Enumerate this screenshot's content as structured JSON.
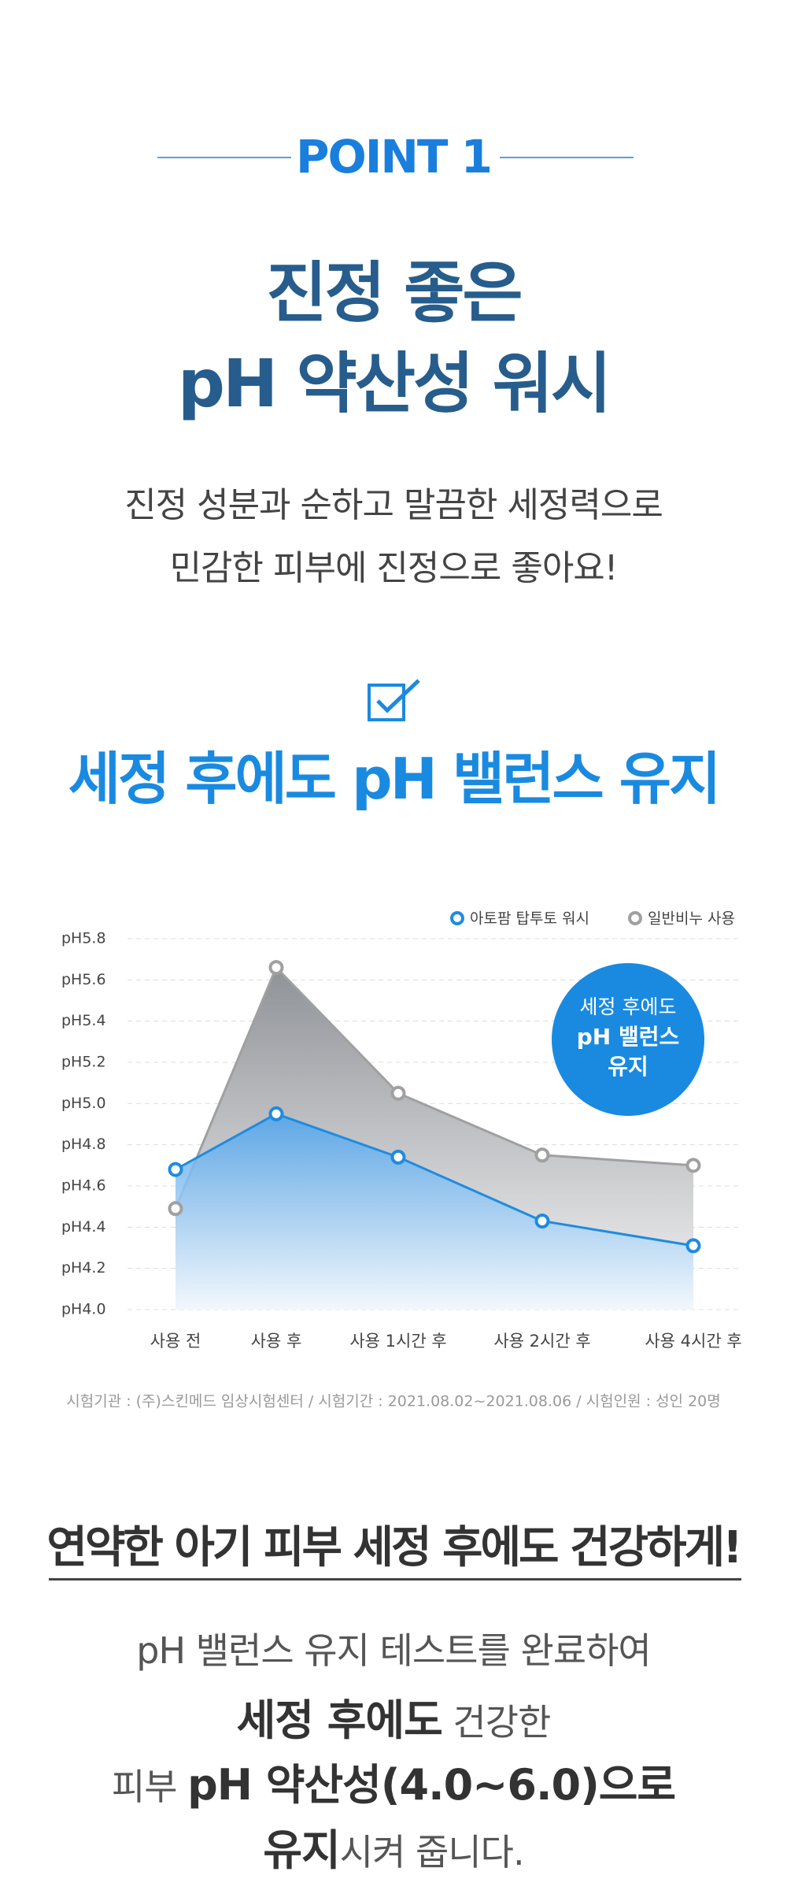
{
  "point": {
    "label": "POINT 1"
  },
  "headline": {
    "lines": [
      "진정 좋은",
      "pH 약산성 워시"
    ]
  },
  "intro": {
    "lines": [
      "진정 성분과 순하고 말끔한 세정력으로",
      "민감한 피부에 진정으로 좋아요!"
    ]
  },
  "section": {
    "title": "세정 후에도 pH 밸런스 유지"
  },
  "chart_data": {
    "type": "area-line",
    "categories": [
      "사용 전",
      "사용 후",
      "사용 1시간 후",
      "사용 2시간 후",
      "사용 4시간 후"
    ],
    "series": [
      {
        "name": "아토팜 탑투토 워시",
        "color": "#1f8be0",
        "values": [
          4.68,
          4.95,
          4.74,
          4.43,
          4.31
        ]
      },
      {
        "name": "일반비누 사용",
        "color": "#a0a0a0",
        "values": [
          4.49,
          5.66,
          5.05,
          4.75,
          4.7
        ]
      }
    ],
    "ylim": [
      4.0,
      5.8
    ],
    "yticks": [
      {
        "value": 4.0,
        "label": "pH4.0"
      },
      {
        "value": 4.2,
        "label": "pH4.2"
      },
      {
        "value": 4.4,
        "label": "pH4.4"
      },
      {
        "value": 4.6,
        "label": "pH4.6"
      },
      {
        "value": 4.8,
        "label": "pH4.8"
      },
      {
        "value": 5.0,
        "label": "pH5.0"
      },
      {
        "value": 5.2,
        "label": "pH5.2"
      },
      {
        "value": 5.4,
        "label": "pH5.4"
      },
      {
        "value": 5.6,
        "label": "pH5.6"
      },
      {
        "value": 5.8,
        "label": "pH5.8"
      }
    ],
    "grid": true,
    "legend": "top-right",
    "badge": [
      "세정 후에도",
      "pH 밸런스",
      "유지"
    ],
    "footnote": "시험기관 : (주)스킨메드 임상시험센터 / 시험기간 : 2021.08.02~2021.08.06 / 시험인원 : 성인 20명"
  },
  "subheading": {
    "title": "연약한 아기 피부 세정 후에도 건강하게!"
  },
  "body": {
    "lines": [
      [
        {
          "text": "pH 밸런스 유지 테스트를 완료하여",
          "bold": false
        }
      ],
      [
        {
          "text": "세정 후에도",
          "bold": true
        },
        {
          "text": " 건강한",
          "bold": false
        }
      ],
      [
        {
          "text": "피부 ",
          "bold": false
        },
        {
          "text": "pH 약산성(4.0~6.0)으로",
          "bold": true
        }
      ],
      [
        {
          "text": "유지",
          "bold": true
        },
        {
          "text": "시켜 줍니다.",
          "bold": false
        }
      ]
    ]
  }
}
